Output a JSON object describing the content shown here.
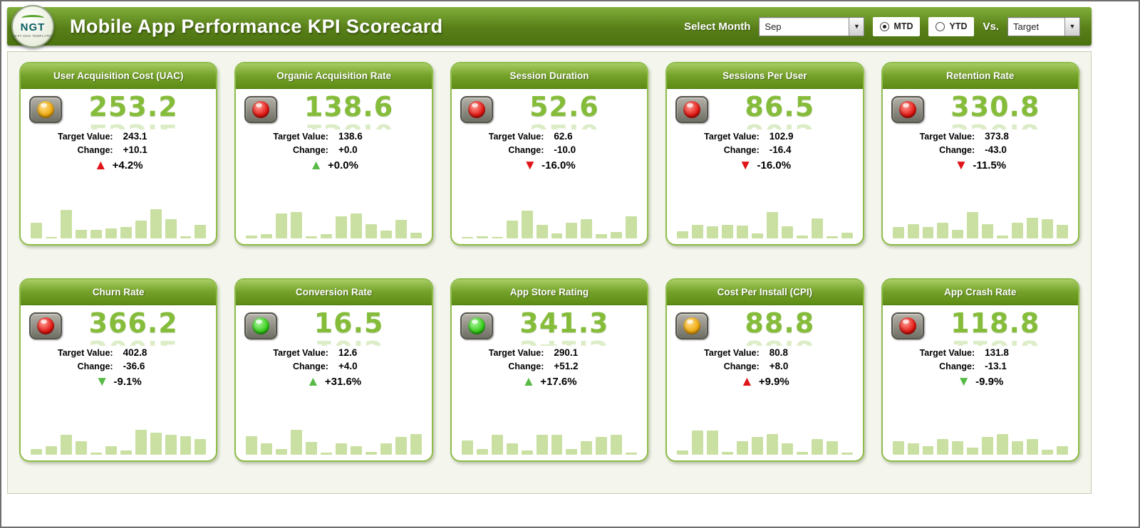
{
  "header": {
    "logo_text": "NGT",
    "logo_subtext": "NEXT GEN TEMPLATES",
    "title": "Mobile App Performance KPI Scorecard",
    "select_month_label": "Select Month",
    "month_value": "Sep",
    "mtd_label": "MTD",
    "ytd_label": "YTD",
    "vs_label": "Vs.",
    "vs_value": "Target"
  },
  "labels": {
    "target_value": "Target Value:",
    "change": "Change:"
  },
  "colors": {
    "accent_green": "#6f9c22",
    "value_green": "#85bd3a",
    "bar_green": "#c9e0a2",
    "alert_red": "#e01418",
    "good_green": "#58bb47",
    "light_red": "#e31510",
    "light_yellow": "#f0a90c",
    "light_green": "#34cf17"
  },
  "cards": [
    {
      "title": "User Acquisition Cost (UAC)",
      "value": "253.2",
      "light": "yellow",
      "target": "243.1",
      "change": "+10.1",
      "pct": "+4.2%",
      "arrow": "up",
      "arrow_color": "red"
    },
    {
      "title": "Organic Acquisition Rate",
      "value": "138.6",
      "light": "red",
      "target": "138.6",
      "change": "+0.0",
      "pct": "+0.0%",
      "arrow": "up",
      "arrow_color": "green"
    },
    {
      "title": "Session Duration",
      "value": "52.6",
      "light": "red",
      "target": "62.6",
      "change": "-10.0",
      "pct": "-16.0%",
      "arrow": "down",
      "arrow_color": "red"
    },
    {
      "title": "Sessions Per User",
      "value": "86.5",
      "light": "red",
      "target": "102.9",
      "change": "-16.4",
      "pct": "-16.0%",
      "arrow": "down",
      "arrow_color": "red"
    },
    {
      "title": "Retention Rate",
      "value": "330.8",
      "light": "red",
      "target": "373.8",
      "change": "-43.0",
      "pct": "-11.5%",
      "arrow": "down",
      "arrow_color": "red"
    },
    {
      "title": "Churn Rate",
      "value": "366.2",
      "light": "red",
      "target": "402.8",
      "change": "-36.6",
      "pct": "-9.1%",
      "arrow": "down",
      "arrow_color": "green"
    },
    {
      "title": "Conversion Rate",
      "value": "16.5",
      "light": "green",
      "target": "12.6",
      "change": "+4.0",
      "pct": "+31.6%",
      "arrow": "up",
      "arrow_color": "green"
    },
    {
      "title": "App Store Rating",
      "value": "341.3",
      "light": "green",
      "target": "290.1",
      "change": "+51.2",
      "pct": "+17.6%",
      "arrow": "up",
      "arrow_color": "green"
    },
    {
      "title": "Cost Per Install (CPI)",
      "value": "88.8",
      "light": "yellow",
      "target": "80.8",
      "change": "+8.0",
      "pct": "+9.9%",
      "arrow": "up",
      "arrow_color": "red"
    },
    {
      "title": "App Crash Rate",
      "value": "118.8",
      "light": "red",
      "target": "131.8",
      "change": "-13.1",
      "pct": "-9.9%",
      "arrow": "down",
      "arrow_color": "green"
    }
  ],
  "chart_data": [
    {
      "type": "bar",
      "title": "User Acquisition Cost (UAC) monthly trend",
      "values": [
        40,
        4,
        72,
        22,
        22,
        25,
        28,
        44,
        74,
        48,
        6,
        34
      ],
      "ylim": [
        0,
        100
      ],
      "units": "relative"
    },
    {
      "type": "bar",
      "title": "Organic Acquisition Rate monthly trend",
      "values": [
        8,
        11,
        62,
        66,
        5,
        10,
        55,
        62,
        35,
        20,
        46,
        15
      ],
      "ylim": [
        0,
        100
      ],
      "units": "relative"
    },
    {
      "type": "bar",
      "title": "Session Duration monthly trend",
      "values": [
        4,
        6,
        4,
        45,
        70,
        34,
        12,
        40,
        48,
        10,
        16,
        56
      ],
      "ylim": [
        0,
        100
      ],
      "units": "relative"
    },
    {
      "type": "bar",
      "title": "Sessions Per User monthly trend",
      "values": [
        18,
        34,
        30,
        34,
        33,
        12,
        66,
        30,
        8,
        50,
        5,
        15
      ],
      "ylim": [
        0,
        100
      ],
      "units": "relative"
    },
    {
      "type": "bar",
      "title": "Retention Rate monthly trend",
      "values": [
        28,
        35,
        28,
        40,
        22,
        66,
        35,
        8,
        40,
        52,
        48,
        34
      ],
      "ylim": [
        0,
        100
      ],
      "units": "relative"
    },
    {
      "type": "bar",
      "title": "Churn Rate monthly trend",
      "values": [
        15,
        22,
        50,
        34,
        5,
        22,
        10,
        62,
        56,
        50,
        46,
        40
      ],
      "ylim": [
        0,
        100
      ],
      "units": "relative"
    },
    {
      "type": "bar",
      "title": "Conversion Rate monthly trend",
      "values": [
        46,
        28,
        15,
        63,
        32,
        5,
        28,
        22,
        8,
        28,
        45,
        52
      ],
      "ylim": [
        0,
        100
      ],
      "units": "relative"
    },
    {
      "type": "bar",
      "title": "App Store Rating monthly trend",
      "values": [
        35,
        15,
        50,
        28,
        10,
        50,
        50,
        15,
        34,
        45,
        50,
        5
      ],
      "ylim": [
        0,
        100
      ],
      "units": "relative"
    },
    {
      "type": "bar",
      "title": "Cost Per Install (CPI) monthly trend",
      "values": [
        10,
        60,
        60,
        8,
        34,
        45,
        52,
        28,
        8,
        40,
        34,
        5
      ],
      "ylim": [
        0,
        100
      ],
      "units": "relative"
    },
    {
      "type": "bar",
      "title": "App Crash Rate monthly trend",
      "values": [
        34,
        28,
        22,
        40,
        34,
        18,
        45,
        52,
        34,
        40,
        12,
        22
      ],
      "ylim": [
        0,
        100
      ],
      "units": "relative"
    }
  ]
}
